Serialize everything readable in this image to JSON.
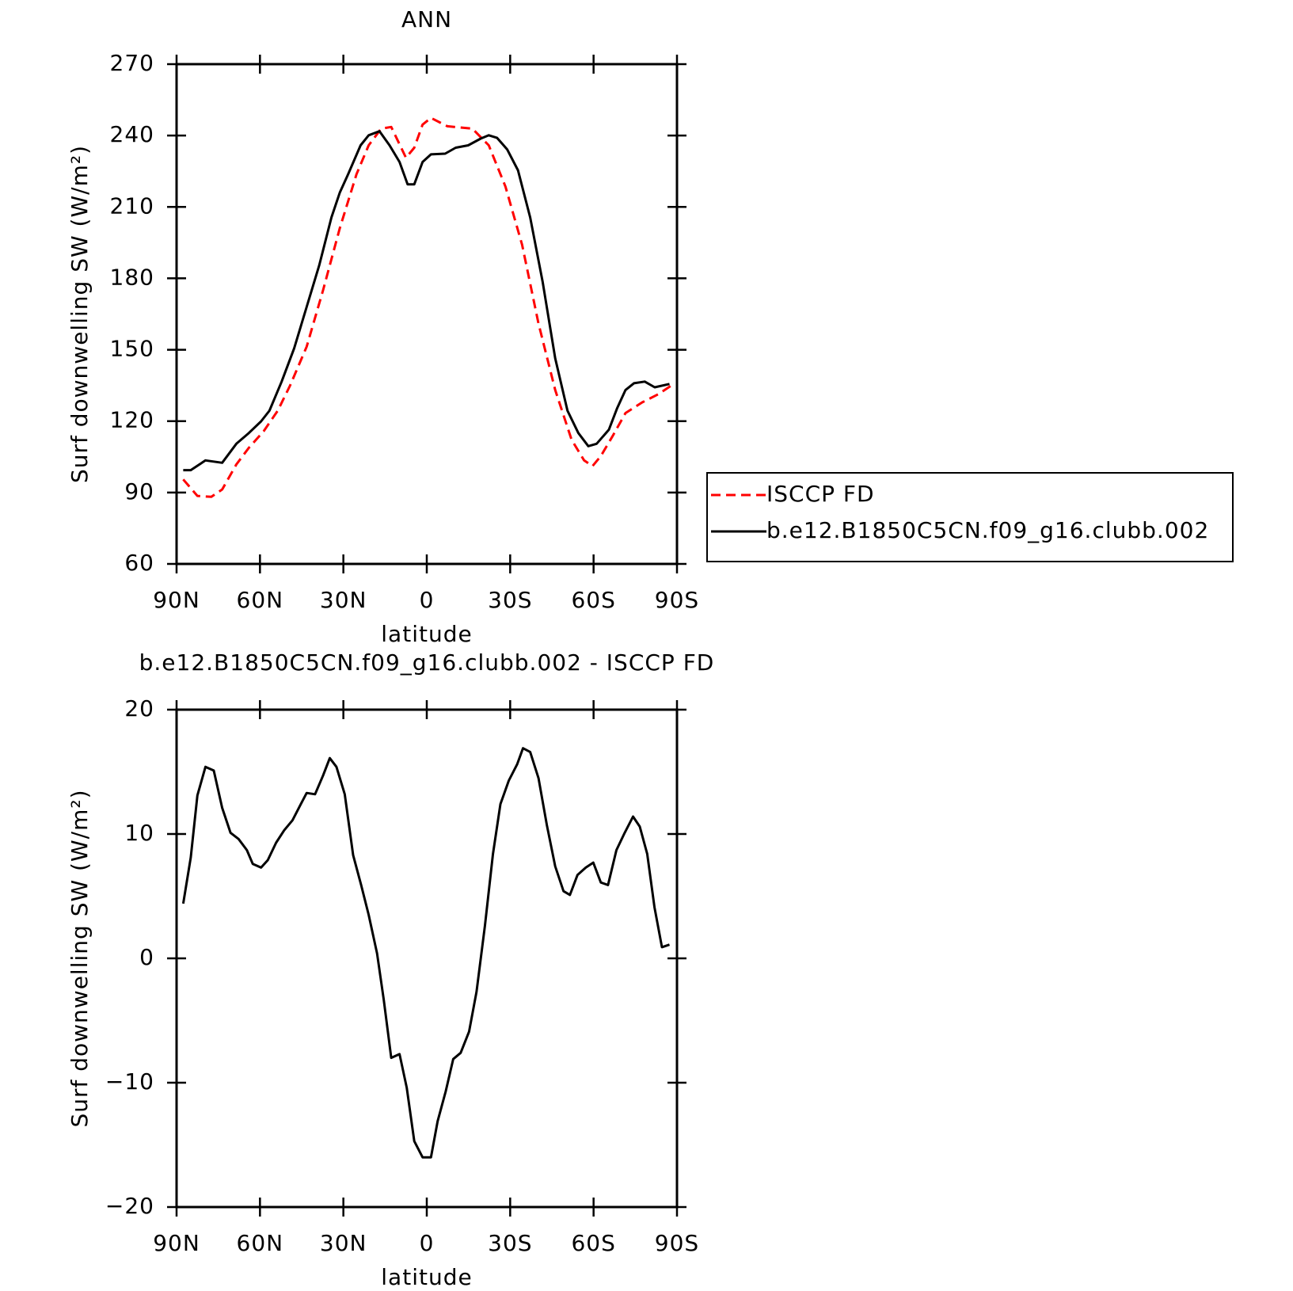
{
  "chart_data": [
    {
      "type": "line",
      "title": "ANN",
      "xlabel": "latitude",
      "ylabel": "Surf downwelling SW (W/m²)",
      "xlim": [
        90,
        -90
      ],
      "ylim": [
        60,
        270
      ],
      "xticks": [
        {
          "value": 90,
          "label": "90N"
        },
        {
          "value": 60,
          "label": "60N"
        },
        {
          "value": 30,
          "label": "30N"
        },
        0,
        {
          "value": -30,
          "label": "30S"
        },
        {
          "value": -60,
          "label": "60S"
        },
        {
          "value": -90,
          "label": "90S"
        }
      ],
      "yticks": [
        60,
        90,
        120,
        150,
        180,
        210,
        240,
        270
      ],
      "legend": "outside-right",
      "series": [
        {
          "name": "ISCCP FD",
          "color": "#ff0000",
          "linestyle": "dashed",
          "x": [
            87.6,
            82.5,
            77.5,
            73.6,
            68.5,
            64,
            58.7,
            53.6,
            49.2,
            43.2,
            37.3,
            31.3,
            25.3,
            20.9,
            16.4,
            12.8,
            7.5,
            4.5,
            1.5,
            -1.5,
            -7.4,
            -16.4,
            -22.3,
            -28.3,
            -34.3,
            -40.2,
            -46.2,
            -52.1,
            -56.6,
            -59.6,
            -62.6,
            -67,
            -71.5,
            -77.5,
            -83.4,
            -87.9
          ],
          "values": [
            95.5,
            88.6,
            88.2,
            91.3,
            101.8,
            108.8,
            115.7,
            124.4,
            134.9,
            151.3,
            175,
            201,
            223.7,
            235.9,
            242.9,
            243.6,
            230.7,
            234.9,
            244.6,
            247.4,
            243.9,
            242.9,
            235.9,
            218.5,
            194.1,
            161,
            133.1,
            112.2,
            103.5,
            101.1,
            105.3,
            114,
            123.4,
            127.9,
            131.4,
            134.9
          ]
        },
        {
          "name": "b.e12.B1850C5CN.f09_g16.clubb.002",
          "color": "#000000",
          "linestyle": "solid",
          "x": [
            87.6,
            84.9,
            79.6,
            73.6,
            68.5,
            64,
            59.6,
            56.6,
            52.2,
            47.7,
            43.2,
            38.7,
            34.3,
            31.3,
            28.3,
            23.8,
            20.9,
            17,
            13.4,
            9.8,
            6.9,
            4.5,
            1.5,
            -1.5,
            -6.6,
            -10.4,
            -14.9,
            -19.4,
            -22.3,
            -25.3,
            -28.9,
            -32.8,
            -37.2,
            -41.7,
            -46.2,
            -50.6,
            -54.5,
            -58.1,
            -61.1,
            -65.5,
            -68.5,
            -71.5,
            -74.5,
            -78.4,
            -82,
            -87.3
          ],
          "values": [
            99.4,
            99.4,
            103.5,
            102.5,
            110.5,
            115,
            119.9,
            124.4,
            136.6,
            150.6,
            168,
            185.4,
            205.6,
            216,
            223.7,
            235.9,
            240.1,
            241.8,
            235.9,
            228.9,
            219.5,
            219.5,
            228.9,
            232.1,
            232.4,
            234.9,
            235.9,
            238.7,
            240.1,
            239,
            234.2,
            225.4,
            205.6,
            178.4,
            146.4,
            124.4,
            115,
            109.5,
            110.5,
            116.4,
            125.5,
            133.1,
            135.9,
            136.6,
            134.2,
            135.6
          ]
        }
      ]
    },
    {
      "type": "line",
      "title": "b.e12.B1850C5CN.f09_g16.clubb.002 - ISCCP FD",
      "xlabel": "latitude",
      "ylabel": "Surf downwelling SW (W/m²)",
      "xlim": [
        90,
        -90
      ],
      "ylim": [
        -20,
        20
      ],
      "xticks": [
        {
          "value": 90,
          "label": "90N"
        },
        {
          "value": 60,
          "label": "60N"
        },
        {
          "value": 30,
          "label": "30N"
        },
        0,
        {
          "value": -30,
          "label": "30S"
        },
        {
          "value": -60,
          "label": "60S"
        },
        {
          "value": -90,
          "label": "90S"
        }
      ],
      "yticks": [
        {
          "value": -20,
          "label": "−20"
        },
        {
          "value": -10,
          "label": "−10"
        },
        0,
        10,
        20
      ],
      "series": [
        {
          "color": "#000000",
          "linestyle": "solid",
          "x": [
            87.6,
            84.9,
            82.5,
            79.6,
            76.6,
            73.6,
            70.6,
            67.7,
            64.7,
            62.6,
            59.6,
            57.2,
            54.2,
            51.3,
            48.3,
            45.3,
            43.2,
            40.2,
            37.3,
            34.9,
            32.5,
            29.5,
            26.5,
            23.6,
            20.9,
            17.9,
            15.5,
            12.8,
            9.8,
            7.2,
            4.5,
            1.5,
            -1.5,
            -3.9,
            -6.8,
            -9.5,
            -12.2,
            -15.2,
            -17.9,
            -20.9,
            -23.8,
            -26.5,
            -29.5,
            -32.5,
            -34.6,
            -37.2,
            -40.2,
            -43.2,
            -46.2,
            -49.2,
            -51.5,
            -54.2,
            -57.2,
            -59.9,
            -62.6,
            -65.2,
            -68.2,
            -71.2,
            -74.2,
            -76.6,
            -79.3,
            -81.9,
            -84.6,
            -87.3
          ],
          "values": [
            4.4,
            8.1,
            13.1,
            15.4,
            15.1,
            12.1,
            10.1,
            9.6,
            8.7,
            7.6,
            7.3,
            7.9,
            9.3,
            10.3,
            11.1,
            12.4,
            13.3,
            13.2,
            14.7,
            16.1,
            15.4,
            13.2,
            8.3,
            5.9,
            3.5,
            0.4,
            -3.3,
            -8,
            -7.7,
            -10.4,
            -14.7,
            -16,
            -16,
            -13.1,
            -10.7,
            -8.1,
            -7.6,
            -5.9,
            -2.7,
            2.6,
            8.4,
            12.4,
            14.3,
            15.6,
            16.9,
            16.6,
            14.5,
            10.7,
            7.4,
            5.4,
            5.1,
            6.7,
            7.3,
            7.7,
            6.1,
            5.9,
            8.7,
            10.1,
            11.4,
            10.6,
            8.4,
            4.1,
            0.9,
            1.1
          ]
        }
      ]
    }
  ]
}
